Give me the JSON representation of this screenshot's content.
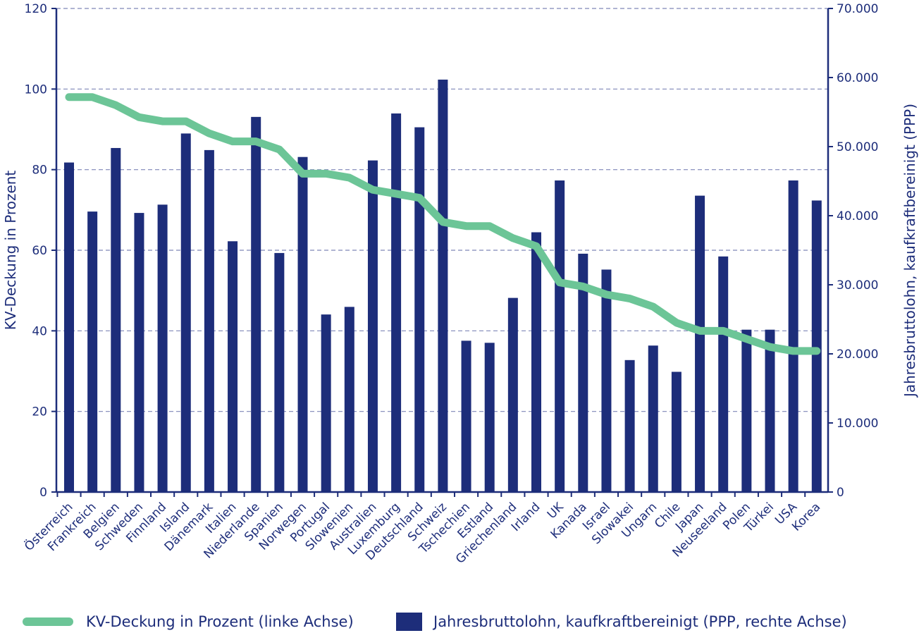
{
  "chart_data": {
    "type": "bar",
    "categories": [
      "Österreich",
      "Frankreich",
      "Belgien",
      "Schweden",
      "Finnland",
      "Island",
      "Dänemark",
      "Italien",
      "Niederlande",
      "Spanien",
      "Norwegen",
      "Portugal",
      "Slowenien",
      "Australien",
      "Luxemburg",
      "Deutschland",
      "Schweiz",
      "Tschechien",
      "Estland",
      "Griechenland",
      "Irland",
      "UK",
      "Kanada",
      "Israel",
      "Slowakei",
      "Ungarn",
      "Chile",
      "Japan",
      "Neuseeland",
      "Polen",
      "Türkei",
      "USA",
      "Korea"
    ],
    "series": [
      {
        "name": "Jahresbruttolohn, kaufkraftbereinigt (PPP, rechte Achse)",
        "type": "bar",
        "axis": "right",
        "color": "#1d2d7a",
        "values": [
          47700,
          40600,
          49800,
          40400,
          41600,
          51900,
          49500,
          36300,
          54300,
          34600,
          48500,
          25700,
          26800,
          48000,
          54800,
          52800,
          59700,
          21900,
          21600,
          28100,
          37600,
          45100,
          34500,
          32200,
          19100,
          21200,
          17400,
          42900,
          34100,
          23500,
          23500,
          45100,
          42200
        ]
      },
      {
        "name": "KV-Deckung in Prozent (linke Achse)",
        "type": "line",
        "axis": "left",
        "color": "#6cc597",
        "values": [
          98,
          98,
          96,
          93,
          92,
          92,
          89,
          87,
          87,
          85,
          79,
          79,
          78,
          75,
          74,
          73,
          67,
          66,
          66,
          63,
          61,
          52,
          51,
          49,
          48,
          46,
          42,
          40,
          40,
          38,
          36,
          35,
          35
        ]
      }
    ],
    "y_left": {
      "label": "KV-Deckung in Prozent",
      "ylim": [
        0,
        120
      ],
      "ticks": [
        "0",
        "20",
        "40",
        "60",
        "80",
        "100",
        "120"
      ]
    },
    "y_right": {
      "label": "Jahresbruttolohn, kaufkraftbereinigt (PPP)",
      "ylim": [
        0,
        70000
      ],
      "ticks": [
        "0",
        "10.000",
        "20.000",
        "30.000",
        "40.000",
        "50.000",
        "60.000",
        "70.000"
      ]
    },
    "grid": true,
    "legend_position": "bottom"
  },
  "legend": {
    "line_label": "KV-Deckung in Prozent (linke Achse)",
    "bar_label": "Jahresbruttolohn, kaufkraftbereinigt (PPP, rechte Achse)"
  }
}
